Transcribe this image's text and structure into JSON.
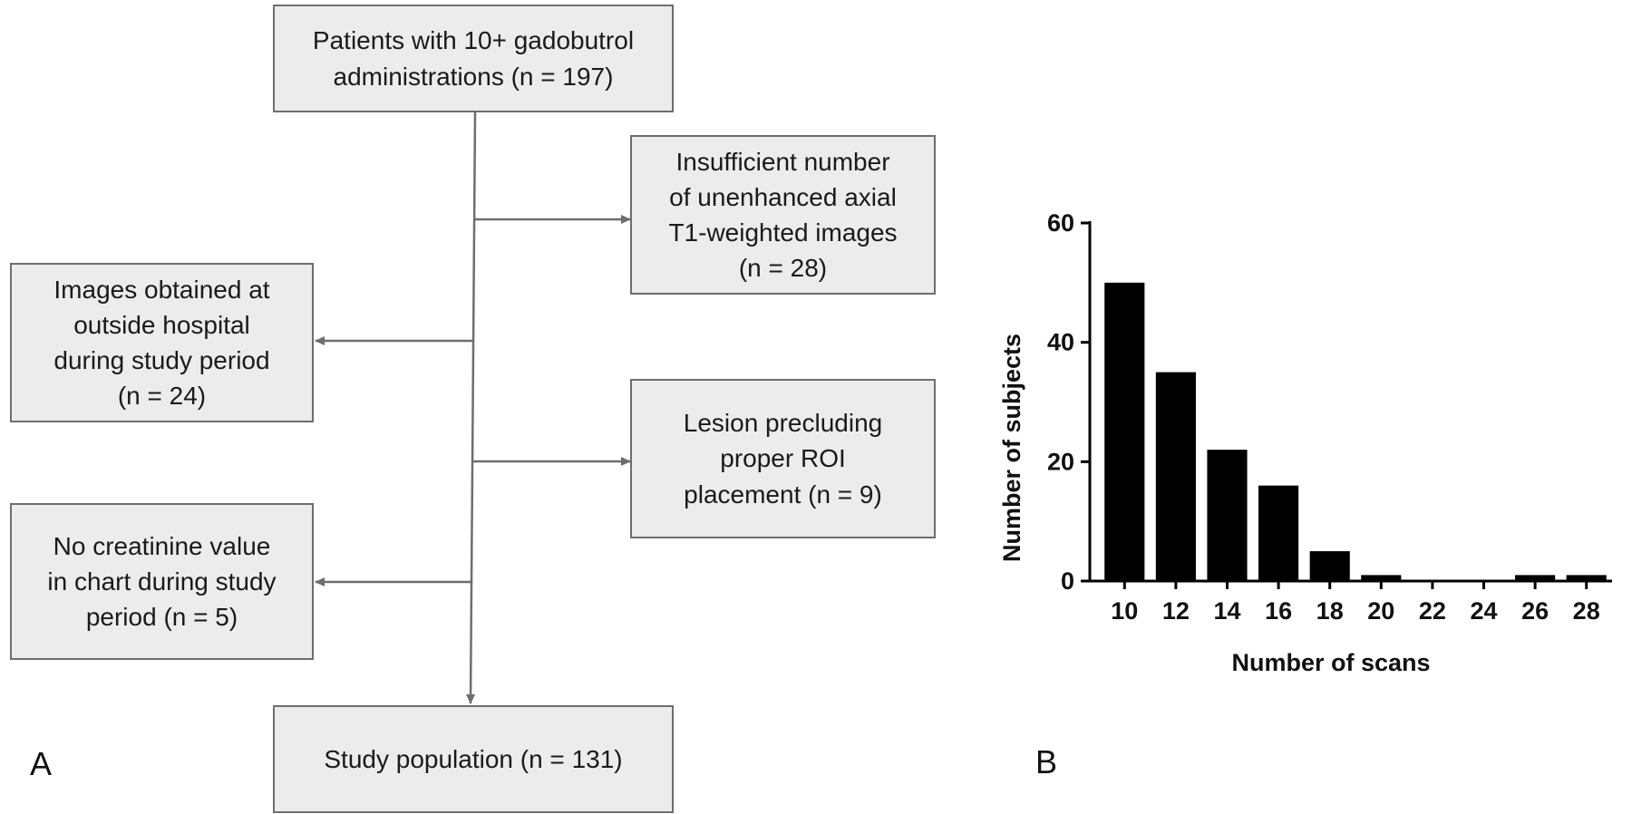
{
  "flowchart": {
    "boxes": {
      "start": "Patients with 10+ gadobutrol\nadministrations (n = 197)",
      "exclude_t1": "Insufficient number\nof unenhanced axial\nT1-weighted images\n(n = 28)",
      "exclude_outside": "Images obtained at\noutside hospital\nduring study period\n(n = 24)",
      "exclude_lesion": "Lesion precluding\nproper ROI\nplacement (n = 9)",
      "exclude_creatinine": "No creatinine value\nin chart during study\nperiod (n = 5)",
      "final": "Study population (n = 131)"
    }
  },
  "panel_labels": {
    "a": "A",
    "b": "B"
  },
  "chart_data": {
    "type": "bar",
    "categories": [
      "10",
      "12",
      "14",
      "16",
      "18",
      "20",
      "22",
      "24",
      "26",
      "28"
    ],
    "values": [
      50,
      35,
      22,
      16,
      5,
      1,
      0,
      0,
      1,
      1
    ],
    "xlabel": "Number of scans",
    "ylabel": "Number of subjects",
    "ylim": [
      0,
      60
    ],
    "yticks": [
      0,
      20,
      40,
      60
    ],
    "bar_color": "#000000"
  }
}
